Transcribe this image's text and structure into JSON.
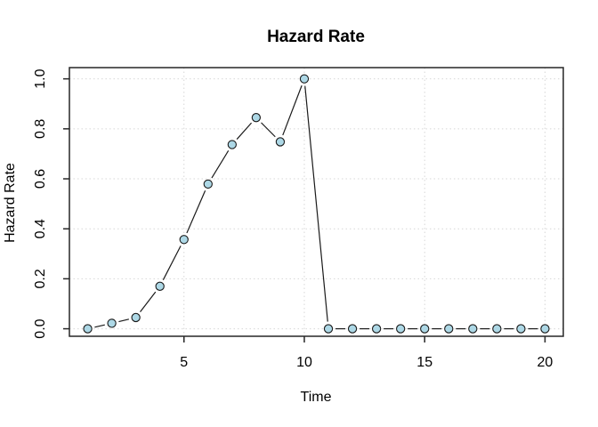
{
  "chart_data": {
    "type": "line",
    "title": "Hazard Rate",
    "xlabel": "Time",
    "ylabel": "Hazard Rate",
    "x": [
      1,
      2,
      3,
      4,
      5,
      6,
      7,
      8,
      9,
      10,
      11,
      12,
      13,
      14,
      15,
      16,
      17,
      18,
      19,
      20
    ],
    "y": [
      0.0,
      0.022,
      0.045,
      0.17,
      0.357,
      0.579,
      0.737,
      0.845,
      0.748,
      1.0,
      0.0,
      0.0,
      0.0,
      0.0,
      0.0,
      0.0,
      0.0,
      0.0,
      0.0,
      0.0
    ],
    "x_ticks": [
      5,
      10,
      15,
      20
    ],
    "y_ticks": [
      "0.0",
      "0.2",
      "0.4",
      "0.6",
      "0.8",
      "1.0"
    ],
    "xlim": [
      0.24,
      20.76
    ],
    "ylim": [
      -0.03,
      1.045
    ],
    "grid": true,
    "legend": "none",
    "marker_shape": "circle",
    "marker_fill": "#add8e6",
    "marker_stroke": "#1a1a1a",
    "line_color": "#1a1a1a",
    "grid_color": "#d7d7d7",
    "axis_color": "#262626",
    "background": "#ffffff"
  }
}
